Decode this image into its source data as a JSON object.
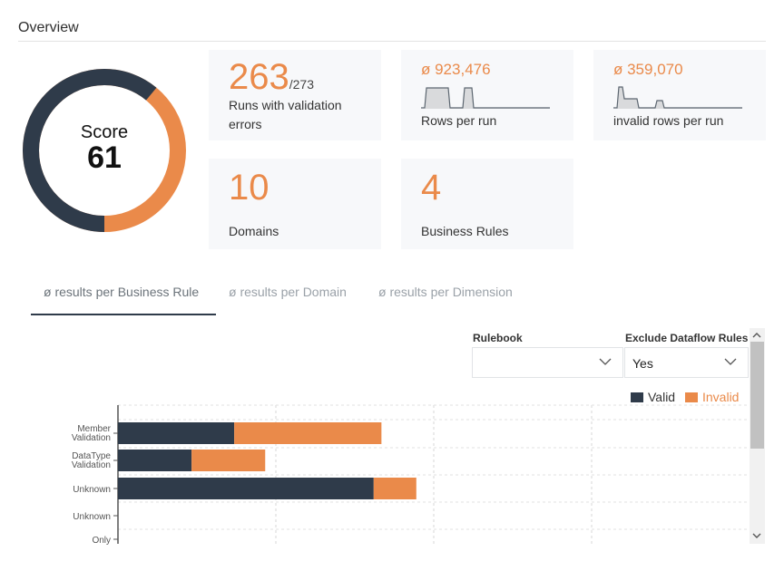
{
  "header": {
    "title": "Overview"
  },
  "score": {
    "label": "Score",
    "value": "61",
    "fraction": 0.61,
    "colors": {
      "valid": "#2f3b4a",
      "invalid": "#ea8a4a"
    }
  },
  "cards": {
    "runs": {
      "value": "263",
      "total": "/273",
      "label_line1": "Runs with validation",
      "label_line2": "errors"
    },
    "rows": {
      "value": "ø 923,476",
      "label": "Rows per run"
    },
    "invalid_rows": {
      "value": "ø 359,070",
      "label": "invalid rows per run"
    },
    "domains": {
      "value": "10",
      "label": "Domains"
    },
    "rules": {
      "value": "4",
      "label": "Business Rules"
    }
  },
  "tabs": [
    {
      "label": "ø results per Business Rule",
      "active": true
    },
    {
      "label": "ø results per Domain",
      "active": false
    },
    {
      "label": "ø results per Dimension",
      "active": false
    }
  ],
  "filters": {
    "rulebook": {
      "label": "Rulebook",
      "value": ""
    },
    "exclude": {
      "label": "Exclude Dataflow Rules",
      "value": "Yes"
    }
  },
  "legend": {
    "valid": "Valid",
    "invalid": "Invalid"
  },
  "chart_data": {
    "type": "bar",
    "orientation": "horizontal",
    "stacked": true,
    "categories": [
      "Member Validation",
      "DataType Validation",
      "Unknown",
      "Unknown",
      "Only"
    ],
    "series": [
      {
        "name": "Valid",
        "color": "#2f3b4a",
        "values": [
          30,
          19,
          66,
          0,
          0
        ]
      },
      {
        "name": "Invalid",
        "color": "#ea8a4a",
        "values": [
          38,
          19,
          11,
          0,
          0
        ]
      }
    ],
    "xlim": [
      0,
      163
    ],
    "grid": true,
    "legend_position": "top-right"
  }
}
